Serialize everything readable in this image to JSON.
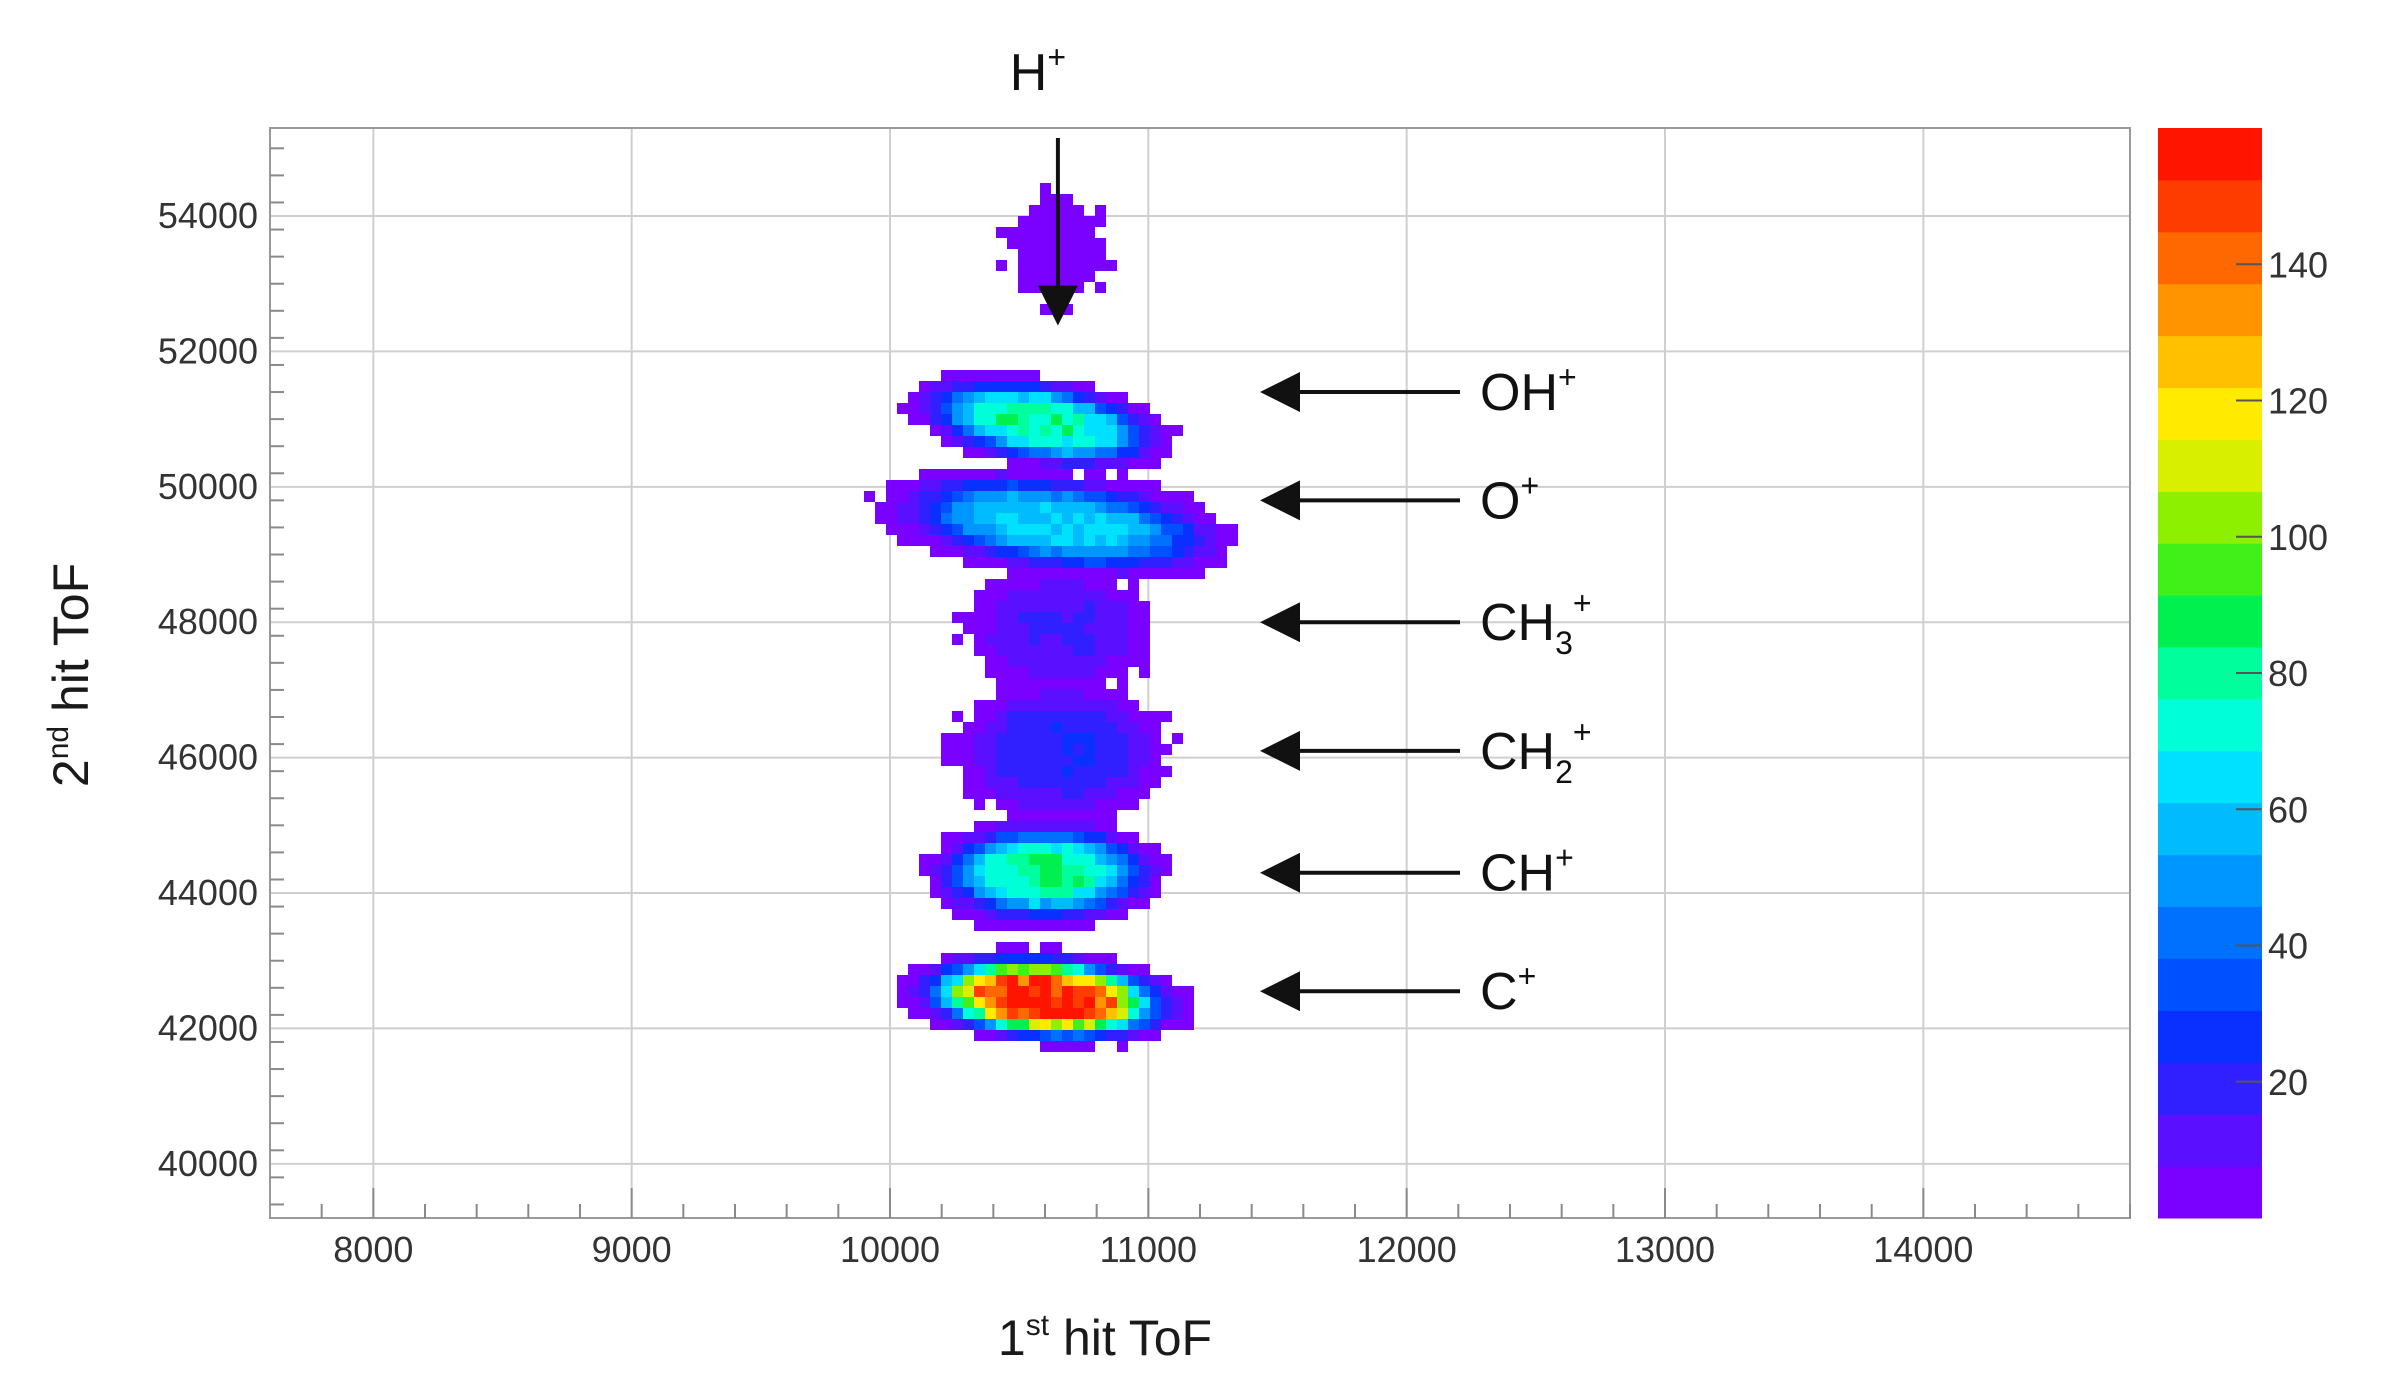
{
  "chart_data": {
    "type": "heatmap",
    "title": "",
    "xaxis": {
      "label_main": "1",
      "label_sup": "st",
      "label_rest": " hit ToF",
      "range": [
        7600,
        14800
      ],
      "ticks": [
        8000,
        9000,
        10000,
        11000,
        12000,
        13000,
        14000
      ],
      "tick_labels": [
        "8000",
        "9000",
        "10000",
        "11000",
        "12000",
        "13000",
        "14000"
      ]
    },
    "yaxis": {
      "label_main": "2",
      "label_sup": "nd",
      "label_rest": " hit ToF",
      "range": [
        39200,
        55300
      ],
      "ticks": [
        40000,
        42000,
        44000,
        46000,
        48000,
        50000,
        52000,
        54000
      ],
      "tick_labels": [
        "40000",
        "42000",
        "44000",
        "46000",
        "48000",
        "50000",
        "52000",
        "54000"
      ]
    },
    "grid": true,
    "colorbar": {
      "range": [
        0,
        160
      ],
      "ticks": [
        20,
        40,
        60,
        80,
        100,
        120,
        140
      ],
      "tick_labels": [
        "20",
        "40",
        "60",
        "80",
        "100",
        "120",
        "140"
      ],
      "colors": [
        "#7a00ff",
        "#5a10ff",
        "#3020ff",
        "#0a30ff",
        "#0050ff",
        "#0070ff",
        "#0096ff",
        "#00bcff",
        "#00e0ff",
        "#00ffd8",
        "#00ff9c",
        "#00f050",
        "#40f018",
        "#8cf000",
        "#d8f000",
        "#ffea00",
        "#ffc000",
        "#ff9400",
        "#ff6800",
        "#ff3c00",
        "#ff1400"
      ]
    },
    "islands": [
      {
        "name": "OH+",
        "x": 10580,
        "y": 50950,
        "sx": 320,
        "sy": 420,
        "peak": 80,
        "slope": -550
      },
      {
        "name": "O+",
        "x": 10650,
        "y": 49450,
        "sx": 430,
        "sy": 480,
        "peak": 62,
        "slope": -420
      },
      {
        "name": "CH3+",
        "x": 10660,
        "y": 47900,
        "sx": 250,
        "sy": 650,
        "peak": 16,
        "slope": 0
      },
      {
        "name": "CH2+",
        "x": 10660,
        "y": 46100,
        "sx": 280,
        "sy": 720,
        "peak": 22,
        "slope": 0
      },
      {
        "name": "CH+",
        "x": 10600,
        "y": 44300,
        "sx": 290,
        "sy": 500,
        "peak": 82,
        "slope": 0
      },
      {
        "name": "C+",
        "x": 10600,
        "y": 42450,
        "sx": 330,
        "sy": 420,
        "peak": 160,
        "slope": -250
      },
      {
        "name": "H+",
        "x": 10650,
        "y": 53500,
        "sx": 160,
        "sy": 700,
        "peak": 4,
        "slope": 0
      }
    ],
    "annotations": [
      {
        "id": "h",
        "label": "H",
        "sup": "+",
        "sub": "",
        "arrow_dir": "down",
        "y": 52500,
        "x": 10650
      },
      {
        "id": "oh",
        "label": "OH",
        "sup": "+",
        "sub": "",
        "arrow_dir": "left",
        "y": 51400
      },
      {
        "id": "o",
        "label": "O",
        "sup": "+",
        "sub": "",
        "arrow_dir": "left",
        "y": 49800
      },
      {
        "id": "ch3",
        "label": "CH",
        "sup": "+",
        "sub": "3",
        "arrow_dir": "left",
        "y": 48000
      },
      {
        "id": "ch2",
        "label": "CH",
        "sup": "+",
        "sub": "2",
        "arrow_dir": "left",
        "y": 46100
      },
      {
        "id": "ch",
        "label": "CH",
        "sup": "+",
        "sub": "",
        "arrow_dir": "left",
        "y": 44300
      },
      {
        "id": "c",
        "label": "C",
        "sup": "+",
        "sub": "",
        "arrow_dir": "left",
        "y": 42550
      }
    ]
  }
}
